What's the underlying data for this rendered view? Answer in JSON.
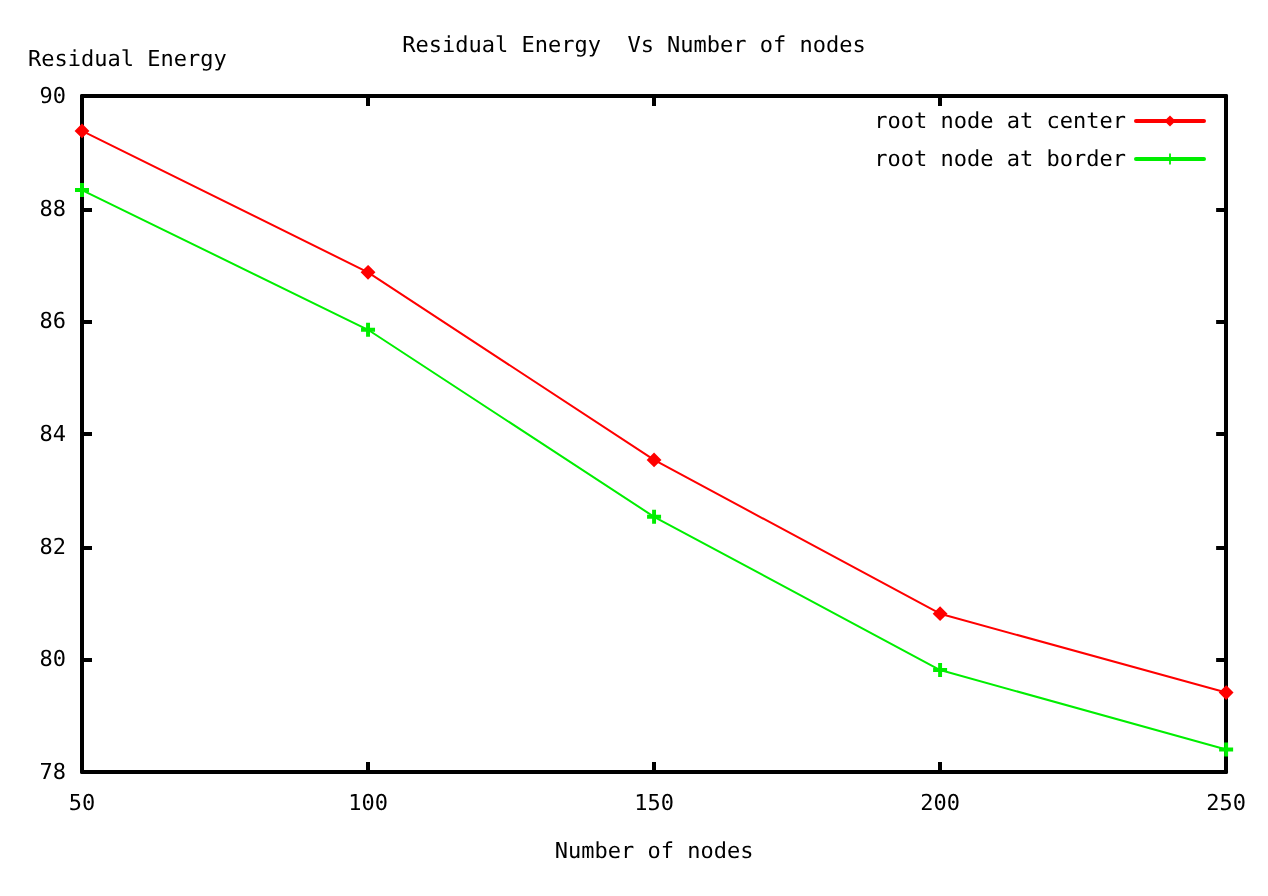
{
  "chart_data": {
    "type": "line",
    "title": "Residual Energy  Vs Number of nodes",
    "xlabel": "Number of nodes",
    "ylabel": "Residual Energy",
    "x": [
      50,
      100,
      150,
      200,
      250
    ],
    "series": [
      {
        "name": "root node at center",
        "color": "#ff0000",
        "marker": "diamond",
        "values": [
          89.38,
          86.87,
          83.54,
          80.81,
          79.41
        ]
      },
      {
        "name": "root node at border",
        "color": "#00ee00",
        "marker": "cross",
        "values": [
          88.33,
          85.85,
          82.53,
          79.81,
          78.4
        ]
      }
    ],
    "xlim": [
      50,
      250
    ],
    "xticks": [
      50,
      100,
      150,
      200,
      250
    ],
    "ylim": [
      78,
      90
    ],
    "yticks": [
      78,
      80,
      82,
      84,
      86,
      88,
      90
    ],
    "grid": false,
    "legend": "top right",
    "line_style": "solid"
  }
}
